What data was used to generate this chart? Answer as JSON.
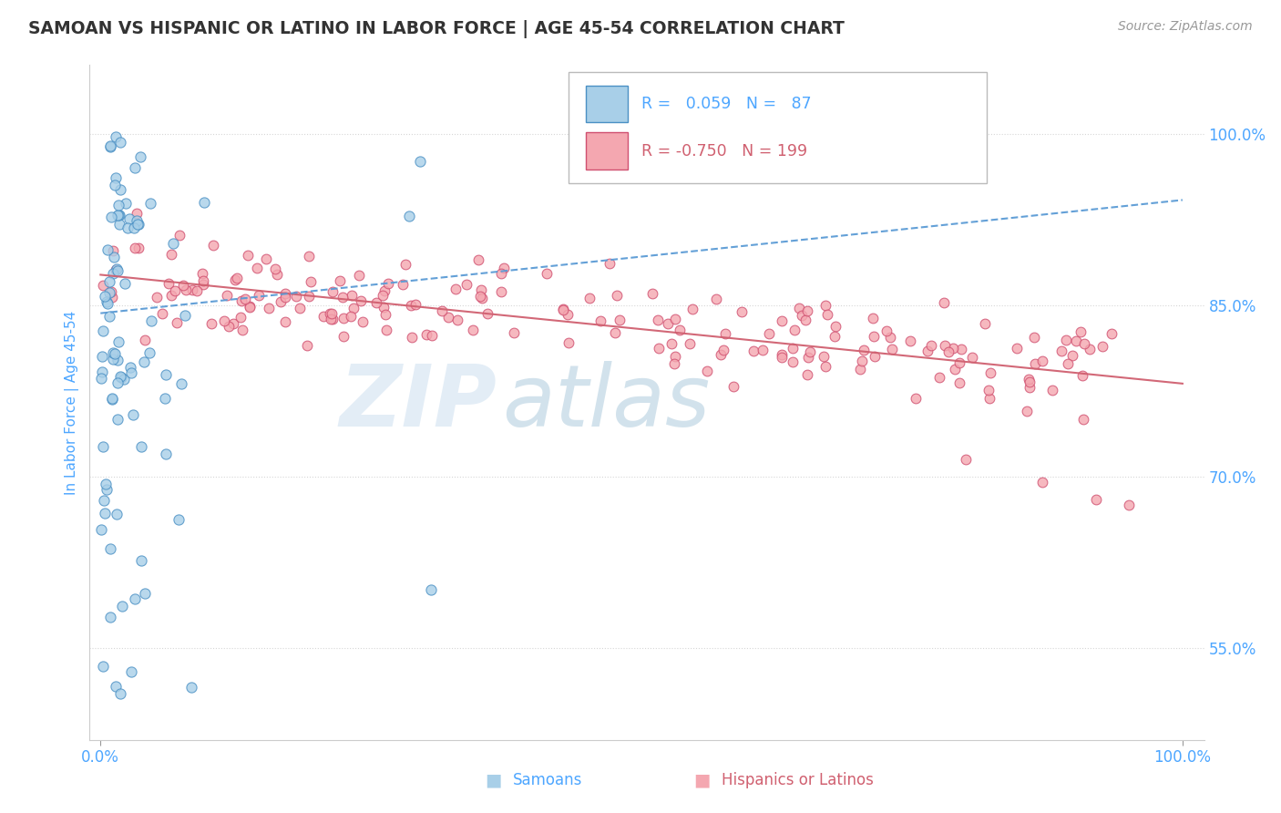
{
  "title": "SAMOAN VS HISPANIC OR LATINO IN LABOR FORCE | AGE 45-54 CORRELATION CHART",
  "source": "Source: ZipAtlas.com",
  "ylabel": "In Labor Force | Age 45-54",
  "xlim": [
    -0.01,
    1.02
  ],
  "ylim": [
    0.47,
    1.06
  ],
  "yticks": [
    0.55,
    0.7,
    0.85,
    1.0
  ],
  "ytick_labels": [
    "55.0%",
    "70.0%",
    "85.0%",
    "100.0%"
  ],
  "xticks": [
    0.0,
    1.0
  ],
  "xtick_labels": [
    "0.0%",
    "100.0%"
  ],
  "legend_r_samoan": "0.059",
  "legend_n_samoan": "87",
  "legend_r_hispanic": "-0.750",
  "legend_n_hispanic": "199",
  "color_samoan_fill": "#a8cfe8",
  "color_samoan_edge": "#4a90c4",
  "color_hispanic_fill": "#f4a7b0",
  "color_hispanic_edge": "#d05070",
  "color_trend_samoan": "#5b9bd5",
  "color_trend_hispanic": "#d06070",
  "background_color": "#ffffff",
  "title_color": "#333333",
  "source_color": "#999999",
  "axis_color": "#4da6ff",
  "legend_entries": [
    "R =  0.059   N =  87",
    "R = -0.750   N = 199"
  ],
  "watermark_zip_color": "#c8dff0",
  "watermark_atlas_color": "#90b8d0",
  "legend_box_edge": "#bbbbbb"
}
